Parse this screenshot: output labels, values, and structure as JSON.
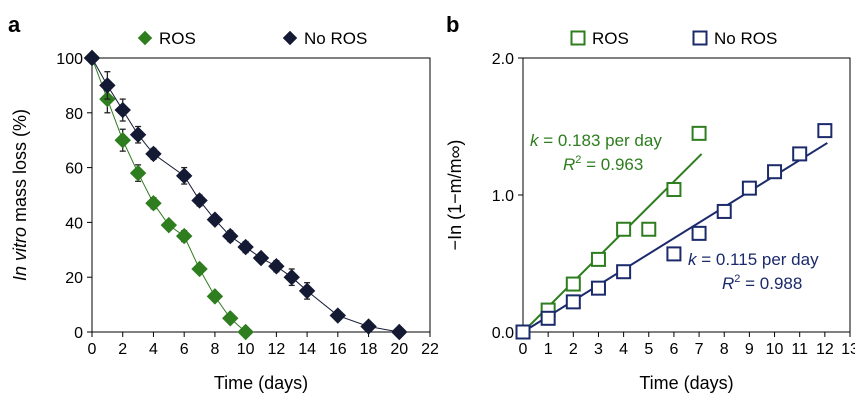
{
  "chart_data": [
    {
      "panel": "a",
      "type": "scatter",
      "xlabel": "Time (days)",
      "ylabel_italic": "In vitro",
      "ylabel_rest": " mass loss (%)",
      "xlim": [
        0,
        22
      ],
      "ylim": [
        0,
        100
      ],
      "xticks": [
        0,
        2,
        4,
        6,
        8,
        10,
        12,
        14,
        16,
        18,
        20,
        22
      ],
      "yticks": [
        0,
        20,
        40,
        60,
        80,
        100
      ],
      "grid": false,
      "legend_position": "top",
      "series": [
        {
          "name": "ROS",
          "color": "#2e7d1f",
          "marker": "diamond",
          "x": [
            0,
            1,
            2,
            3,
            4,
            5,
            6,
            7,
            8,
            9,
            10
          ],
          "y": [
            100,
            85,
            70,
            58,
            47,
            39,
            35,
            23,
            13,
            5,
            0
          ],
          "err": [
            1,
            5,
            4,
            3,
            2,
            1,
            2,
            1,
            1,
            1,
            0
          ]
        },
        {
          "name": "No ROS",
          "color": "#141a33",
          "marker": "diamond",
          "x": [
            0,
            1,
            2,
            3,
            4,
            6,
            7,
            8,
            9,
            10,
            11,
            12,
            13,
            14,
            16,
            18,
            20
          ],
          "y": [
            100,
            90,
            81,
            72,
            65,
            57,
            48,
            41,
            35,
            31,
            27,
            24,
            20,
            15,
            6,
            2,
            0
          ],
          "err": [
            1,
            5,
            4,
            3,
            2,
            3,
            2,
            1,
            2,
            2,
            1,
            2,
            3,
            3,
            1,
            1,
            0
          ]
        }
      ]
    },
    {
      "panel": "b",
      "type": "scatter",
      "xlabel": "Time (days)",
      "ylabel": "−In (1−m/m∞)",
      "xlim": [
        0,
        13
      ],
      "ylim": [
        0,
        2
      ],
      "xticks": [
        0,
        1,
        2,
        3,
        4,
        5,
        6,
        7,
        8,
        9,
        10,
        11,
        12,
        13
      ],
      "yticks": [
        0,
        1,
        2
      ],
      "ytick_labels": [
        "0.0",
        "1.0",
        "2.0"
      ],
      "grid": false,
      "legend_position": "top",
      "series": [
        {
          "name": "ROS",
          "color": "#2e7d1f",
          "marker": "square",
          "x": [
            0,
            1,
            2,
            3,
            4,
            5,
            6,
            7
          ],
          "y": [
            0,
            0.16,
            0.35,
            0.53,
            0.75,
            0.75,
            1.04,
            1.45
          ],
          "fit": {
            "k_label": "k",
            "k_text": " = 0.183 per day",
            "r_label": "R",
            "r_sup": "2",
            "r_text": " = 0.963",
            "x0": 0,
            "y0": 0,
            "x1": 7.1,
            "y1": 1.3
          }
        },
        {
          "name": "No ROS",
          "color": "#1b2a6b",
          "marker": "square",
          "x": [
            0,
            1,
            2,
            3,
            4,
            6,
            7,
            8,
            9,
            10,
            11,
            12
          ],
          "y": [
            0,
            0.1,
            0.22,
            0.32,
            0.44,
            0.57,
            0.72,
            0.88,
            1.05,
            1.17,
            1.3,
            1.47
          ],
          "fit": {
            "k_label": "k",
            "k_text": " = 0.115 per day",
            "r_label": "R",
            "r_sup": "2",
            "r_text": " = 0.988",
            "x0": 0,
            "y0": 0,
            "x1": 12.1,
            "y1": 1.38
          }
        }
      ]
    }
  ]
}
